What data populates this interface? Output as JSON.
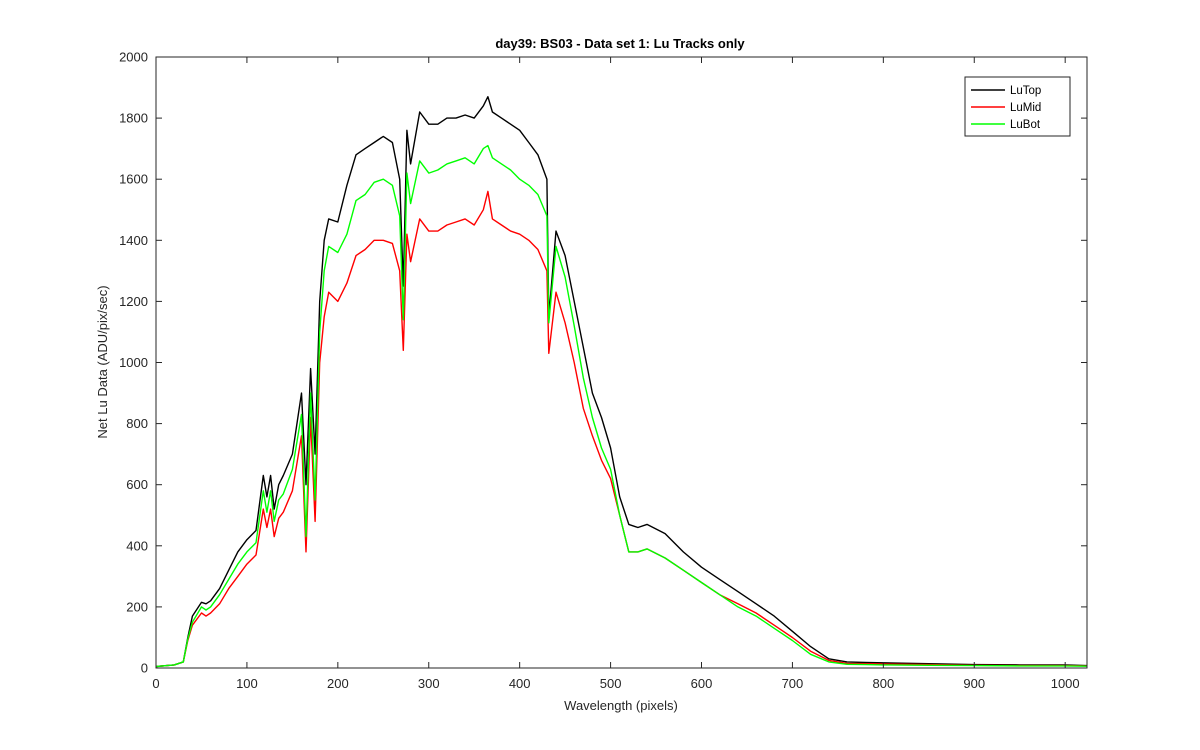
{
  "chart_data": {
    "type": "line",
    "title": "day39: BS03 - Data set 1: Lu Tracks only",
    "xlabel": "Wavelength (pixels)",
    "ylabel": "Net Lu Data (ADU/pix/sec)",
    "xlim": [
      0,
      1024
    ],
    "ylim": [
      0,
      2000
    ],
    "x_ticks": [
      0,
      100,
      200,
      300,
      400,
      500,
      600,
      700,
      800,
      900,
      1000
    ],
    "y_ticks": [
      0,
      200,
      400,
      600,
      800,
      1000,
      1200,
      1400,
      1600,
      1800,
      2000
    ],
    "grid": false,
    "legend_position": "top-right",
    "series": [
      {
        "name": "LuTop",
        "color": "#000000",
        "x": [
          0,
          20,
          30,
          35,
          40,
          50,
          55,
          60,
          70,
          80,
          90,
          100,
          110,
          118,
          122,
          126,
          130,
          135,
          140,
          150,
          160,
          165,
          170,
          175,
          180,
          185,
          190,
          200,
          210,
          220,
          230,
          240,
          250,
          260,
          268,
          272,
          276,
          280,
          290,
          300,
          310,
          320,
          330,
          340,
          350,
          360,
          365,
          370,
          380,
          390,
          400,
          410,
          420,
          430,
          432,
          440,
          450,
          460,
          470,
          480,
          490,
          500,
          510,
          520,
          530,
          540,
          560,
          580,
          600,
          620,
          640,
          660,
          680,
          700,
          720,
          740,
          760,
          780,
          800,
          850,
          900,
          950,
          1000,
          1024
        ],
        "y": [
          5,
          10,
          20,
          100,
          170,
          215,
          210,
          220,
          260,
          320,
          380,
          420,
          450,
          630,
          560,
          630,
          520,
          600,
          630,
          700,
          900,
          600,
          980,
          700,
          1200,
          1400,
          1470,
          1460,
          1580,
          1680,
          1700,
          1720,
          1740,
          1720,
          1600,
          1250,
          1760,
          1650,
          1820,
          1780,
          1780,
          1800,
          1800,
          1810,
          1800,
          1840,
          1870,
          1820,
          1800,
          1780,
          1760,
          1720,
          1680,
          1600,
          1150,
          1430,
          1350,
          1200,
          1050,
          900,
          820,
          720,
          560,
          470,
          460,
          470,
          440,
          380,
          330,
          290,
          250,
          210,
          170,
          120,
          70,
          30,
          20,
          18,
          17,
          14,
          11,
          10,
          10,
          8
        ]
      },
      {
        "name": "LuMid",
        "color": "#ff0000",
        "x": [
          0,
          20,
          30,
          35,
          40,
          50,
          55,
          60,
          70,
          80,
          90,
          100,
          110,
          118,
          122,
          126,
          130,
          135,
          140,
          150,
          160,
          165,
          170,
          175,
          180,
          185,
          190,
          200,
          210,
          220,
          230,
          240,
          250,
          260,
          268,
          272,
          276,
          280,
          290,
          300,
          310,
          320,
          330,
          340,
          350,
          360,
          365,
          370,
          380,
          390,
          400,
          410,
          420,
          430,
          432,
          440,
          450,
          460,
          470,
          480,
          490,
          500,
          510,
          520,
          530,
          540,
          560,
          580,
          600,
          620,
          640,
          660,
          680,
          700,
          720,
          740,
          760,
          780,
          800,
          850,
          900,
          950,
          1000,
          1024
        ],
        "y": [
          5,
          10,
          20,
          90,
          140,
          180,
          170,
          180,
          210,
          260,
          300,
          340,
          370,
          520,
          460,
          520,
          430,
          490,
          510,
          580,
          760,
          380,
          820,
          480,
          1000,
          1150,
          1230,
          1200,
          1260,
          1350,
          1370,
          1400,
          1400,
          1390,
          1300,
          1040,
          1420,
          1330,
          1470,
          1430,
          1430,
          1450,
          1460,
          1470,
          1450,
          1500,
          1560,
          1470,
          1450,
          1430,
          1420,
          1400,
          1370,
          1300,
          1030,
          1230,
          1130,
          1000,
          850,
          760,
          680,
          620,
          500,
          380,
          380,
          390,
          360,
          320,
          280,
          240,
          210,
          180,
          140,
          100,
          55,
          25,
          15,
          14,
          13,
          11,
          9,
          8,
          8,
          7
        ]
      },
      {
        "name": "LuBot",
        "color": "#00ff00",
        "x": [
          0,
          20,
          30,
          35,
          40,
          50,
          55,
          60,
          70,
          80,
          90,
          100,
          110,
          118,
          122,
          126,
          130,
          135,
          140,
          150,
          160,
          165,
          170,
          175,
          180,
          185,
          190,
          200,
          210,
          220,
          230,
          240,
          250,
          260,
          268,
          272,
          276,
          280,
          290,
          300,
          310,
          320,
          330,
          340,
          350,
          360,
          365,
          370,
          380,
          390,
          400,
          410,
          420,
          430,
          432,
          440,
          450,
          460,
          470,
          480,
          490,
          500,
          510,
          520,
          530,
          540,
          560,
          580,
          600,
          620,
          640,
          660,
          680,
          700,
          720,
          740,
          760,
          780,
          800,
          850,
          900,
          950,
          1000,
          1024
        ],
        "y": [
          5,
          10,
          20,
          95,
          150,
          200,
          190,
          200,
          240,
          290,
          340,
          380,
          410,
          580,
          510,
          580,
          480,
          550,
          570,
          650,
          830,
          430,
          900,
          550,
          1100,
          1300,
          1380,
          1360,
          1420,
          1530,
          1550,
          1590,
          1600,
          1580,
          1480,
          1140,
          1620,
          1520,
          1660,
          1620,
          1630,
          1650,
          1660,
          1670,
          1650,
          1700,
          1710,
          1670,
          1650,
          1630,
          1600,
          1580,
          1550,
          1480,
          1130,
          1380,
          1280,
          1120,
          950,
          820,
          720,
          650,
          500,
          380,
          380,
          390,
          360,
          320,
          280,
          240,
          200,
          170,
          130,
          90,
          45,
          20,
          12,
          11,
          10,
          9,
          8,
          7,
          7,
          6
        ]
      }
    ]
  }
}
